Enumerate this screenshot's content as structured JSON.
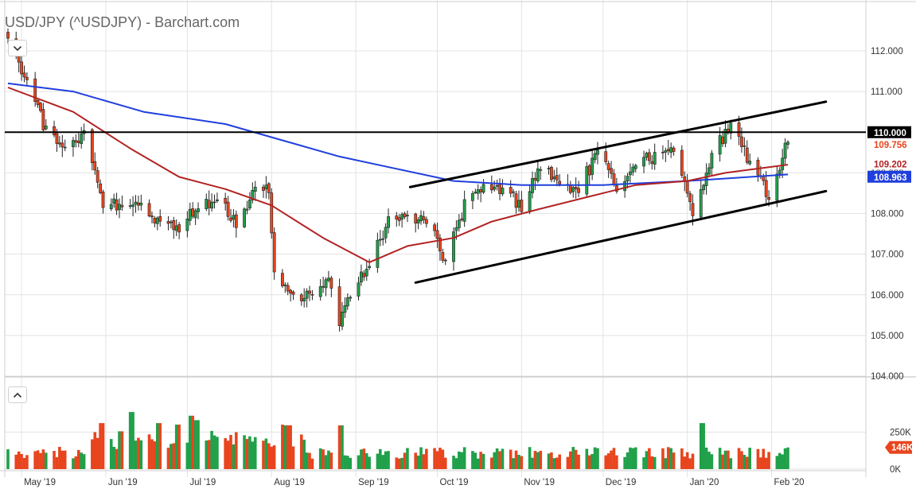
{
  "header": {
    "title": "USD/JPY (^USDJPY) - Barchart.com"
  },
  "controls": {
    "collapse_price_icon": "chevron-down-icon",
    "expand_volume_icon": "chevron-up-icon"
  },
  "colors": {
    "up": "#20a04a",
    "down": "#e8451e",
    "ma_fast": "#b22222",
    "ma_slow": "#1f3fdd",
    "trend": "#000000",
    "grid": "#e3e3e3",
    "last_tag": "#e8451e"
  },
  "chart_data": [
    {
      "type": "candlestick",
      "title": "USD/JPY (^USDJPY) - Barchart.com",
      "x_tick_labels": [
        "May '19",
        "Jun '19",
        "Jul '19",
        "Aug '19",
        "Sep '19",
        "Oct '19",
        "Nov '19",
        "Dec '19",
        "Jan '20",
        "Feb '20"
      ],
      "y_tick_labels": [
        "112.000",
        "111.000",
        "110.000",
        "109.000",
        "108.000",
        "107.000",
        "106.000",
        "105.000",
        "104.000"
      ],
      "ylim": [
        104.0,
        112.4
      ],
      "grid": true,
      "start_date": "2019-04-26",
      "end_date": "2020-02-07",
      "price_tags": [
        {
          "name": "horizontal",
          "value": "110.000",
          "color": "#000000"
        },
        {
          "name": "last",
          "value": "109.756",
          "color": "#e8451e"
        },
        {
          "name": "ma_fast",
          "value": "109.202",
          "color": "#b22222"
        },
        {
          "name": "ma_slow",
          "value": "108.963",
          "color": "#1f3fdd"
        }
      ],
      "anchors": [
        [
          "2019-04-26",
          112.2
        ],
        [
          "2019-05-03",
          111.3
        ],
        [
          "2019-05-10",
          110.0
        ],
        [
          "2019-05-17",
          109.5
        ],
        [
          "2019-05-24",
          109.9
        ],
        [
          "2019-05-31",
          108.3
        ],
        [
          "2019-06-07",
          108.2
        ],
        [
          "2019-06-14",
          108.2
        ],
        [
          "2019-06-21",
          107.7
        ],
        [
          "2019-06-28",
          107.6
        ],
        [
          "2019-07-05",
          108.2
        ],
        [
          "2019-07-12",
          108.3
        ],
        [
          "2019-07-19",
          107.8
        ],
        [
          "2019-07-26",
          108.6
        ],
        [
          "2019-07-31",
          108.6
        ],
        [
          "2019-08-02",
          106.6
        ],
        [
          "2019-08-09",
          105.9
        ],
        [
          "2019-08-16",
          106.0
        ],
        [
          "2019-08-23",
          106.3
        ],
        [
          "2019-08-26",
          105.3
        ],
        [
          "2019-08-30",
          106.1
        ],
        [
          "2019-09-06",
          106.8
        ],
        [
          "2019-09-13",
          107.8
        ],
        [
          "2019-09-20",
          107.9
        ],
        [
          "2019-09-27",
          107.9
        ],
        [
          "2019-10-04",
          106.8
        ],
        [
          "2019-10-11",
          108.2
        ],
        [
          "2019-10-18",
          108.6
        ],
        [
          "2019-10-25",
          108.6
        ],
        [
          "2019-11-01",
          108.2
        ],
        [
          "2019-11-08",
          109.2
        ],
        [
          "2019-11-15",
          108.7
        ],
        [
          "2019-11-22",
          108.6
        ],
        [
          "2019-11-29",
          109.5
        ],
        [
          "2019-12-06",
          108.6
        ],
        [
          "2019-12-13",
          109.3
        ],
        [
          "2019-12-20",
          109.4
        ],
        [
          "2019-12-27",
          109.5
        ],
        [
          "2020-01-03",
          108.1
        ],
        [
          "2020-01-08",
          109.0
        ],
        [
          "2020-01-10",
          109.5
        ],
        [
          "2020-01-17",
          110.1
        ],
        [
          "2020-01-24",
          109.3
        ],
        [
          "2020-01-31",
          108.4
        ],
        [
          "2020-02-07",
          109.8
        ]
      ],
      "ma_fast": [
        [
          "2019-04-26",
          111.1
        ],
        [
          "2019-05-20",
          110.5
        ],
        [
          "2019-06-10",
          109.6
        ],
        [
          "2019-06-28",
          108.9
        ],
        [
          "2019-07-15",
          108.6
        ],
        [
          "2019-08-01",
          108.2
        ],
        [
          "2019-08-20",
          107.4
        ],
        [
          "2019-09-06",
          106.8
        ],
        [
          "2019-09-20",
          107.2
        ],
        [
          "2019-10-07",
          107.4
        ],
        [
          "2019-10-21",
          107.8
        ],
        [
          "2019-11-07",
          108.1
        ],
        [
          "2019-11-25",
          108.4
        ],
        [
          "2019-12-13",
          108.7
        ],
        [
          "2020-01-01",
          108.8
        ],
        [
          "2020-01-15",
          109.0
        ],
        [
          "2020-02-07",
          109.2
        ]
      ],
      "ma_slow": [
        [
          "2019-04-26",
          111.2
        ],
        [
          "2019-05-20",
          111.0
        ],
        [
          "2019-06-15",
          110.5
        ],
        [
          "2019-07-15",
          110.2
        ],
        [
          "2019-08-05",
          109.8
        ],
        [
          "2019-08-26",
          109.4
        ],
        [
          "2019-09-16",
          109.1
        ],
        [
          "2019-10-07",
          108.8
        ],
        [
          "2019-11-01",
          108.7
        ],
        [
          "2019-12-01",
          108.7
        ],
        [
          "2020-01-01",
          108.8
        ],
        [
          "2020-02-07",
          108.96
        ]
      ],
      "horizontal_line": 110.0,
      "trendlines": [
        {
          "from": [
            "2019-09-21",
            108.65
          ],
          "to": [
            "2020-02-21",
            110.75
          ]
        },
        {
          "from": [
            "2019-09-23",
            106.3
          ],
          "to": [
            "2020-02-21",
            108.55
          ]
        }
      ]
    },
    {
      "type": "bar",
      "name": "volume",
      "y_tick_labels": [
        "250K",
        "0K"
      ],
      "ylim": [
        0,
        600000
      ],
      "last_value_label": "146K",
      "base_level": 70000,
      "spikes": [
        [
          "2019-05-31",
          310000
        ],
        [
          "2019-06-07",
          255000
        ],
        [
          "2019-06-10",
          385000
        ],
        [
          "2019-06-21",
          310000
        ],
        [
          "2019-06-28",
          300000
        ],
        [
          "2019-07-03",
          360000
        ],
        [
          "2019-07-05",
          330000
        ],
        [
          "2019-08-05",
          300000
        ],
        [
          "2019-08-07",
          295000
        ],
        [
          "2019-08-26",
          295000
        ],
        [
          "2020-01-06",
          310000
        ]
      ]
    }
  ]
}
